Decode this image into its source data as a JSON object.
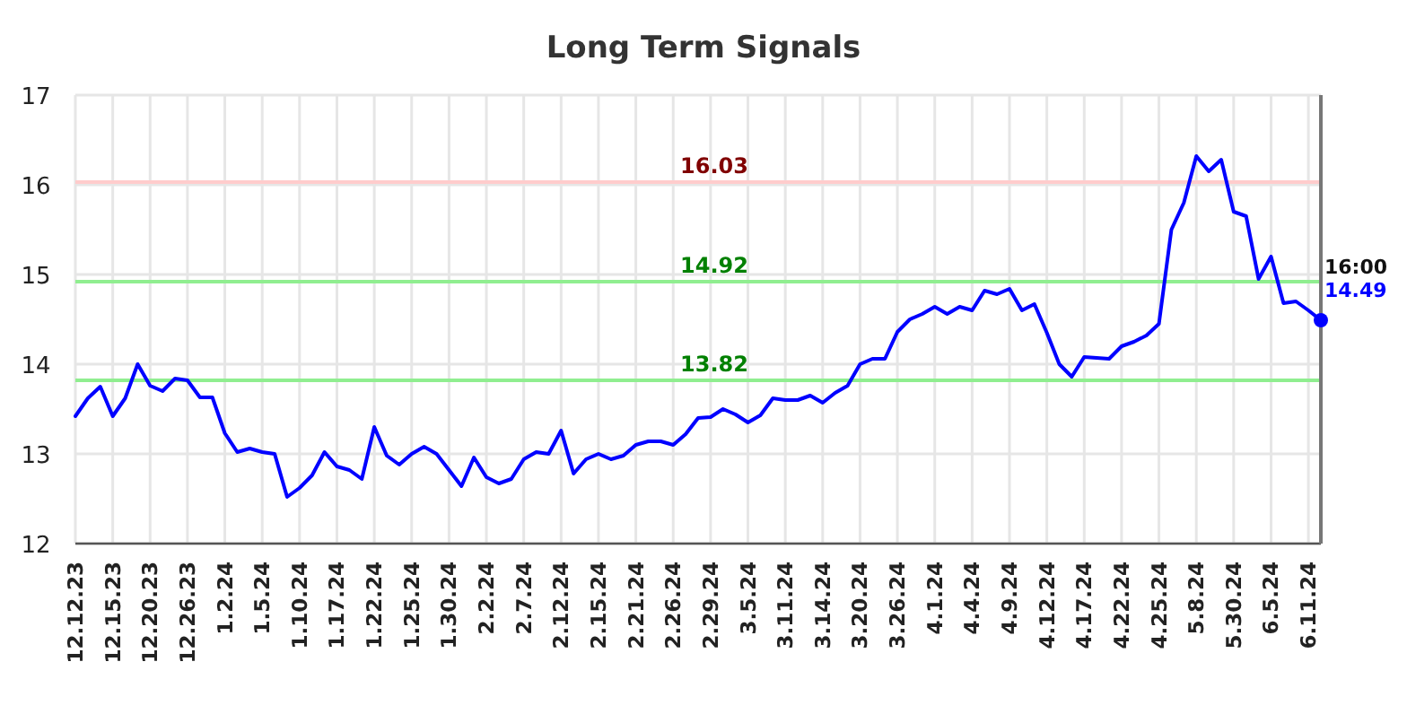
{
  "chart_data": {
    "type": "line",
    "title": "Long Term Signals",
    "categories": [
      "12.12.23",
      null,
      null,
      "12.15.23",
      null,
      null,
      "12.20.23",
      null,
      null,
      "12.26.23",
      null,
      null,
      "1.2.24",
      null,
      null,
      "1.5.24",
      null,
      null,
      "1.10.24",
      null,
      null,
      "1.17.24",
      null,
      null,
      "1.22.24",
      null,
      null,
      "1.25.24",
      null,
      null,
      "1.30.24",
      null,
      null,
      "2.2.24",
      null,
      null,
      "2.7.24",
      null,
      null,
      "2.12.24",
      null,
      null,
      "2.15.24",
      null,
      null,
      "2.21.24",
      null,
      null,
      "2.26.24",
      null,
      null,
      "2.29.24",
      null,
      null,
      "3.5.24",
      null,
      null,
      "3.11.24",
      null,
      null,
      "3.14.24",
      null,
      null,
      "3.20.24",
      null,
      null,
      "3.26.24",
      null,
      null,
      "4.1.24",
      null,
      null,
      "4.4.24",
      null,
      null,
      "4.9.24",
      null,
      null,
      "4.12.24",
      null,
      null,
      "4.17.24",
      null,
      null,
      "4.22.24",
      null,
      null,
      "4.25.24",
      null,
      null,
      "5.8.24",
      null,
      null,
      "5.30.24",
      null,
      null,
      "6.5.24",
      null,
      null,
      "6.11.24",
      null
    ],
    "series": [
      {
        "color": "#0000ff",
        "values": [
          13.42,
          13.62,
          13.75,
          13.42,
          13.62,
          14.0,
          13.76,
          13.7,
          13.84,
          13.82,
          13.63,
          13.63,
          13.23,
          13.02,
          13.06,
          13.02,
          13.0,
          12.52,
          12.62,
          12.76,
          13.02,
          12.86,
          12.82,
          12.72,
          13.3,
          12.98,
          12.88,
          13.0,
          13.08,
          13.0,
          12.82,
          12.64,
          12.96,
          12.74,
          12.67,
          12.72,
          12.94,
          13.02,
          13.0,
          13.26,
          12.78,
          12.94,
          13.0,
          12.94,
          12.98,
          13.1,
          13.14,
          13.14,
          13.1,
          13.22,
          13.4,
          13.41,
          13.5,
          13.44,
          13.35,
          13.43,
          13.62,
          13.6,
          13.6,
          13.65,
          13.57,
          13.68,
          13.76,
          14.0,
          14.06,
          14.06,
          14.36,
          14.5,
          14.56,
          14.64,
          14.56,
          14.64,
          14.6,
          14.82,
          14.78,
          14.84,
          14.6,
          14.67,
          14.35,
          14.0,
          13.86,
          14.08,
          14.07,
          14.06,
          14.2,
          14.25,
          14.32,
          14.45,
          15.5,
          15.8,
          16.32,
          16.15,
          16.28,
          15.7,
          15.65,
          14.95,
          15.2,
          14.68,
          14.7,
          14.6,
          14.49
        ]
      },
      {
        "type": "scatter",
        "marker": "circle",
        "color": "#0000ff",
        "values": [
          null,
          null,
          null,
          null,
          null,
          null,
          null,
          null,
          null,
          null,
          null,
          null,
          null,
          null,
          null,
          null,
          null,
          null,
          null,
          null,
          null,
          null,
          null,
          null,
          null,
          null,
          null,
          null,
          null,
          null,
          null,
          null,
          null,
          null,
          null,
          null,
          null,
          null,
          null,
          null,
          null,
          null,
          null,
          null,
          null,
          null,
          null,
          null,
          null,
          null,
          null,
          null,
          null,
          null,
          null,
          null,
          null,
          null,
          null,
          null,
          null,
          null,
          null,
          null,
          null,
          null,
          null,
          null,
          null,
          null,
          null,
          null,
          null,
          null,
          null,
          null,
          null,
          null,
          null,
          null,
          null,
          null,
          null,
          null,
          null,
          null,
          null,
          null,
          null,
          null,
          null,
          null,
          null,
          null,
          null,
          null,
          null,
          null,
          null,
          null,
          14.49
        ],
        "value_labels": [
          null,
          null,
          null,
          null,
          null,
          null,
          null,
          null,
          null,
          null,
          null,
          null,
          null,
          null,
          null,
          null,
          null,
          null,
          null,
          null,
          null,
          null,
          null,
          null,
          null,
          null,
          null,
          null,
          null,
          null,
          null,
          null,
          null,
          null,
          null,
          null,
          null,
          null,
          null,
          null,
          null,
          null,
          null,
          null,
          null,
          null,
          null,
          null,
          null,
          null,
          null,
          null,
          null,
          null,
          null,
          null,
          null,
          null,
          null,
          null,
          null,
          null,
          null,
          null,
          null,
          null,
          null,
          null,
          null,
          null,
          null,
          null,
          null,
          null,
          null,
          null,
          null,
          null,
          null,
          null,
          null,
          null,
          null,
          null,
          null,
          null,
          null,
          null,
          null,
          null,
          null,
          null,
          null,
          null,
          null,
          null,
          null,
          null,
          null,
          null,
          "14.49"
        ]
      }
    ],
    "ylim": [
      12,
      17
    ],
    "yticks": [
      12,
      13,
      14,
      15,
      16,
      17
    ],
    "grid": true,
    "marker": "none",
    "line_style": "solid",
    "ref_lines": [
      {
        "axis": "y",
        "value": 16.03,
        "label": "16.03",
        "color": "#ffcccc"
      },
      {
        "axis": "y",
        "value": 14.92,
        "label": "14.92",
        "color": "#90ee90"
      },
      {
        "axis": "y",
        "value": 13.82,
        "label": "13.82",
        "color": "#90ee90"
      }
    ],
    "annotations": [
      "16:00"
    ]
  }
}
